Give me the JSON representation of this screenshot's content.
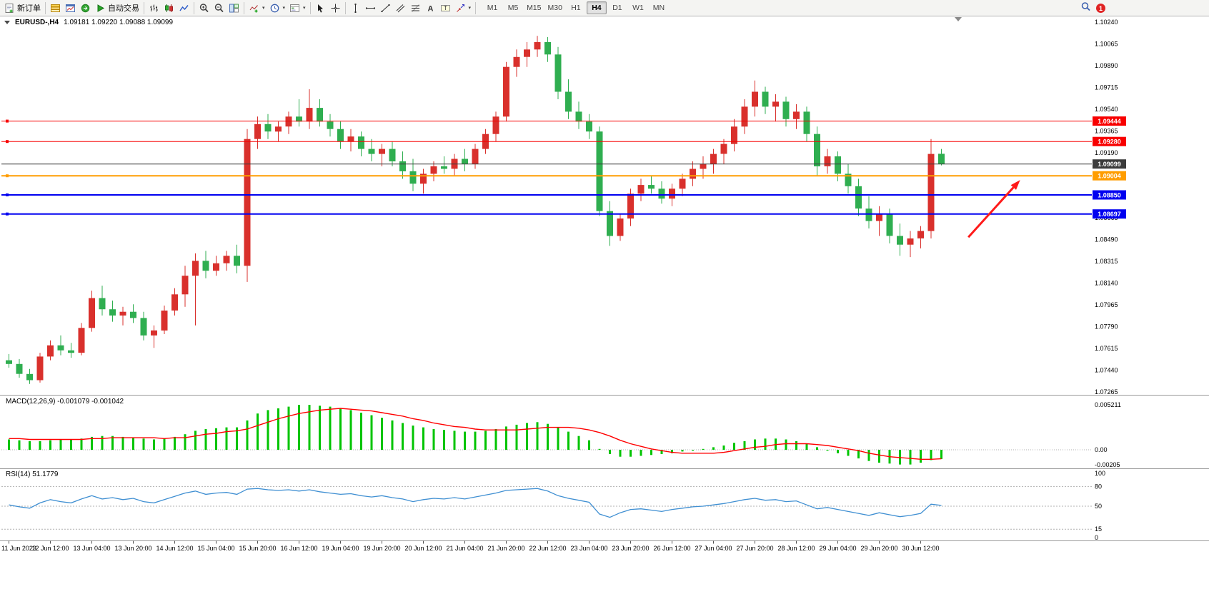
{
  "toolbar": {
    "new_order_label": "新订单",
    "autotrading_label": "自动交易",
    "timeframes": [
      "M1",
      "M5",
      "M15",
      "M30",
      "H1",
      "H4",
      "D1",
      "W1",
      "MN"
    ],
    "active_timeframe": "H4",
    "notification_count": "1",
    "dropdown_glyph": "▾"
  },
  "chart": {
    "symbol_period": "EURUSD-,H4",
    "ohlc": "1.09181 1.09220 1.09088 1.09099",
    "macd_label": "MACD(12,26,9) -0.001079 -0.001042",
    "rsi_label": "RSI(14) 51.1779"
  },
  "icons": {
    "new-order": "document-plus",
    "profiles": "layered-bars",
    "charts-window": "mini-chart-window",
    "navigator": "green-circle-arrow",
    "autotrading": "play-triangle",
    "bar-chart": "ohlc-bars",
    "candlestick-chart": "two-candles",
    "line-chart": "zigzag-line",
    "zoom-in": "magnifier-plus",
    "zoom-out": "magnifier-minus",
    "tile-windows": "tiled-panes",
    "indicators": "chart-line-plus",
    "periods": "clock",
    "templates": "chart-template",
    "cursor": "pointer-arrow",
    "crosshair": "crosshair",
    "vertical-line": "vertical-line",
    "horizontal-line": "horizontal-line",
    "trendline": "diagonal-line",
    "channel": "parallel-lines",
    "fibonacci": "fibo-levels",
    "text": "letter-A",
    "text-label": "label-box",
    "arrows": "arrow-shapes",
    "search": "magnifier",
    "shift-marker": "▼",
    "oneclick-arrow": "▼"
  },
  "chart_data": [
    {
      "panel": "price",
      "type": "candlestick",
      "symbol": "EURUSD-",
      "timeframe": "H4",
      "bars_per_label": 4,
      "x_labels": [
        "11 Jun 2023",
        "12 Jun 12:00",
        "13 Jun 04:00",
        "13 Jun 20:00",
        "14 Jun 12:00",
        "15 Jun 04:00",
        "15 Jun 20:00",
        "16 Jun 12:00",
        "19 Jun 04:00",
        "19 Jun 20:00",
        "20 Jun 12:00",
        "21 Jun 04:00",
        "21 Jun 20:00",
        "22 Jun 12:00",
        "23 Jun 04:00",
        "23 Jun 20:00",
        "26 Jun 12:00",
        "27 Jun 04:00",
        "27 Jun 20:00",
        "28 Jun 12:00",
        "29 Jun 04:00",
        "29 Jun 20:00",
        "30 Jun 12:00"
      ],
      "candles": [
        [
          1.0752,
          1.0757,
          1.0746,
          1.0749
        ],
        [
          1.0749,
          1.0753,
          1.0738,
          1.0741
        ],
        [
          1.0741,
          1.0745,
          1.0733,
          1.0736
        ],
        [
          1.0736,
          1.0758,
          1.0734,
          1.0755
        ],
        [
          1.0755,
          1.0768,
          1.0752,
          1.0764
        ],
        [
          1.0764,
          1.0772,
          1.0756,
          1.076
        ],
        [
          1.076,
          1.0766,
          1.0754,
          1.0758
        ],
        [
          1.0758,
          1.0782,
          1.0756,
          1.0778
        ],
        [
          1.0778,
          1.0808,
          1.0775,
          1.0802
        ],
        [
          1.0802,
          1.0812,
          1.0788,
          1.0793
        ],
        [
          1.0793,
          1.08,
          1.0783,
          1.0788
        ],
        [
          1.0788,
          1.0795,
          1.078,
          1.0791
        ],
        [
          1.0791,
          1.0797,
          1.0782,
          1.0786
        ],
        [
          1.0786,
          1.0791,
          1.0768,
          1.0772
        ],
        [
          1.0772,
          1.078,
          1.0762,
          1.0776
        ],
        [
          1.0776,
          1.0796,
          1.0773,
          1.0792
        ],
        [
          1.0792,
          1.081,
          1.0788,
          1.0805
        ],
        [
          1.0805,
          1.0828,
          1.0795,
          1.082
        ],
        [
          1.082,
          1.0838,
          1.078,
          1.0832
        ],
        [
          1.0832,
          1.084,
          1.0818,
          1.0824
        ],
        [
          1.0824,
          1.0836,
          1.082,
          1.083
        ],
        [
          1.083,
          1.084,
          1.0824,
          1.0836
        ],
        [
          1.0836,
          1.0845,
          1.0822,
          1.0828
        ],
        [
          1.0828,
          1.0938,
          1.0815,
          1.093
        ],
        [
          1.093,
          1.0948,
          1.0922,
          1.0942
        ],
        [
          1.0942,
          1.095,
          1.093,
          1.0936
        ],
        [
          1.0936,
          1.0944,
          1.0928,
          1.094
        ],
        [
          1.094,
          1.0952,
          1.0934,
          1.0948
        ],
        [
          1.0948,
          1.0962,
          1.094,
          1.0944
        ],
        [
          1.0944,
          1.097,
          1.0938,
          1.0955
        ],
        [
          1.0955,
          1.0962,
          1.094,
          1.0944
        ],
        [
          1.0944,
          1.095,
          1.0932,
          1.0938
        ],
        [
          1.0938,
          1.0944,
          1.0922,
          1.0928
        ],
        [
          1.0928,
          1.0938,
          1.092,
          1.0932
        ],
        [
          1.0932,
          1.0936,
          1.0916,
          1.0922
        ],
        [
          1.0922,
          1.093,
          1.0912,
          1.0918
        ],
        [
          1.0918,
          1.0926,
          1.0908,
          1.0922
        ],
        [
          1.0922,
          1.0928,
          1.0908,
          1.0912
        ],
        [
          1.0912,
          1.092,
          1.0898,
          1.0904
        ],
        [
          1.0904,
          1.0914,
          1.0888,
          1.0894
        ],
        [
          1.0894,
          1.0906,
          1.0886,
          1.0902
        ],
        [
          1.0902,
          1.0912,
          1.0896,
          1.0908
        ],
        [
          1.0908,
          1.0916,
          1.0902,
          1.0906
        ],
        [
          1.0906,
          1.0918,
          1.09,
          1.0914
        ],
        [
          1.0914,
          1.0922,
          1.0904,
          1.091
        ],
        [
          1.091,
          1.0926,
          1.0906,
          1.0922
        ],
        [
          1.0922,
          1.0938,
          1.0918,
          1.0934
        ],
        [
          1.0934,
          1.0952,
          1.0928,
          1.0948
        ],
        [
          1.0948,
          1.0992,
          1.0944,
          1.0988
        ],
        [
          1.0988,
          1.1002,
          1.098,
          1.0996
        ],
        [
          1.0996,
          1.1008,
          1.0988,
          1.1002
        ],
        [
          1.1002,
          1.1013,
          1.0996,
          1.1008
        ],
        [
          1.1008,
          1.1012,
          1.0992,
          1.0998
        ],
        [
          1.0998,
          1.1004,
          1.0962,
          1.0968
        ],
        [
          1.0968,
          1.0978,
          1.0946,
          1.0952
        ],
        [
          1.0952,
          1.096,
          1.0938,
          1.0944
        ],
        [
          1.0944,
          1.095,
          1.093,
          1.0936
        ],
        [
          1.0936,
          1.094,
          1.0868,
          1.0872
        ],
        [
          1.0872,
          1.088,
          1.0844,
          1.0852
        ],
        [
          1.0852,
          1.087,
          1.0848,
          1.0866
        ],
        [
          1.0866,
          1.089,
          1.086,
          1.0886
        ],
        [
          1.0886,
          1.0898,
          1.088,
          1.0893
        ],
        [
          1.0893,
          1.09,
          1.0886,
          1.089
        ],
        [
          1.089,
          1.0896,
          1.0878,
          1.0882
        ],
        [
          1.0882,
          1.0894,
          1.0876,
          1.089
        ],
        [
          1.089,
          1.0902,
          1.0884,
          1.0898
        ],
        [
          1.0898,
          1.0912,
          1.0892,
          1.0906
        ],
        [
          1.0906,
          1.0916,
          1.0898,
          1.091
        ],
        [
          1.091,
          1.0922,
          1.0902,
          1.0918
        ],
        [
          1.0918,
          1.093,
          1.091,
          1.0926
        ],
        [
          1.0926,
          1.0946,
          1.092,
          1.094
        ],
        [
          1.094,
          1.0962,
          1.0934,
          1.0956
        ],
        [
          1.0956,
          1.0977,
          1.0948,
          1.0968
        ],
        [
          1.0968,
          1.0972,
          1.095,
          1.0956
        ],
        [
          1.0956,
          1.0966,
          1.0944,
          1.096
        ],
        [
          1.096,
          1.0964,
          1.094,
          1.0946
        ],
        [
          1.0946,
          1.0958,
          1.0938,
          1.0952
        ],
        [
          1.0952,
          1.0956,
          1.0928,
          1.0934
        ],
        [
          1.0934,
          1.094,
          1.09,
          1.0908
        ],
        [
          1.0908,
          1.0922,
          1.0902,
          1.0916
        ],
        [
          1.0916,
          1.092,
          1.0896,
          1.0902
        ],
        [
          1.0902,
          1.091,
          1.0886,
          1.0892
        ],
        [
          1.0892,
          1.0898,
          1.0868,
          1.0874
        ],
        [
          1.0874,
          1.0884,
          1.0858,
          1.0864
        ],
        [
          1.0864,
          1.0876,
          1.0852,
          1.087
        ],
        [
          1.087,
          1.0874,
          1.0846,
          1.0852
        ],
        [
          1.0852,
          1.0862,
          1.0836,
          1.0845
        ],
        [
          1.0845,
          1.0856,
          1.0835,
          1.085
        ],
        [
          1.085,
          1.086,
          1.0842,
          1.0856
        ],
        [
          1.0856,
          1.093,
          1.085,
          1.0918
        ],
        [
          1.09181,
          1.0922,
          1.09088,
          1.09099
        ]
      ],
      "y_axis": {
        "min": 1.07265,
        "max": 1.1024,
        "step": 0.00175,
        "labels": [
          "1.10240",
          "1.10065",
          "1.09890",
          "1.09715",
          "1.09540",
          "1.09365",
          "1.09190",
          "1.09015",
          "1.08840",
          "1.08665",
          "1.08490",
          "1.08315",
          "1.08140",
          "1.07965",
          "1.07790",
          "1.07615",
          "1.07440",
          "1.07265"
        ]
      },
      "hlines": [
        {
          "price": 1.09444,
          "label": "1.09444",
          "color": "#f80000",
          "width": 1
        },
        {
          "price": 1.0928,
          "label": "1.09280",
          "color": "#f80000",
          "width": 1
        },
        {
          "price": 1.09099,
          "label": "1.09099",
          "color": "#3c3c3c",
          "width": 1,
          "current": true
        },
        {
          "price": 1.09004,
          "label": "1.09004",
          "color": "#ff9d00",
          "width": 2
        },
        {
          "price": 1.0885,
          "label": "1.08850",
          "color": "#0000f0",
          "width": 2
        },
        {
          "price": 1.08697,
          "label": "1.08697",
          "color": "#0000f0",
          "width": 2
        }
      ],
      "arrow": {
        "bar_from": 92.6,
        "price_from": 1.0851,
        "bar_to": 97.6,
        "price_to": 1.0897,
        "color": "#ff1a1a"
      },
      "colors": {
        "bull": "#d9302c",
        "bear": "#2fae50"
      }
    },
    {
      "panel": "macd",
      "type": "bar",
      "label": "MACD(12,26,9) -0.001079 -0.001042",
      "histogram": [
        0.0012,
        0.0011,
        0.001,
        0.001,
        0.0011,
        0.0012,
        0.0012,
        0.0013,
        0.0015,
        0.0016,
        0.0016,
        0.0015,
        0.0014,
        0.0013,
        0.0012,
        0.0013,
        0.0015,
        0.0018,
        0.0022,
        0.0024,
        0.0025,
        0.0026,
        0.0026,
        0.0034,
        0.0042,
        0.0046,
        0.0048,
        0.005,
        0.0052,
        0.0052,
        0.0051,
        0.005,
        0.0048,
        0.0046,
        0.0043,
        0.004,
        0.0037,
        0.0034,
        0.0031,
        0.0028,
        0.0026,
        0.0024,
        0.0023,
        0.0022,
        0.0021,
        0.0021,
        0.0022,
        0.0024,
        0.0027,
        0.0029,
        0.0031,
        0.0032,
        0.003,
        0.0026,
        0.0021,
        0.0016,
        0.0011,
        0.0001,
        -0.0005,
        -0.0008,
        -0.0008,
        -0.0007,
        -0.0006,
        -0.0005,
        -0.0004,
        -0.0002,
        -0.0001,
        0.0001,
        0.0003,
        0.0005,
        0.0008,
        0.001,
        0.0012,
        0.0013,
        0.0013,
        0.0012,
        0.001,
        0.0007,
        0.0003,
        -0.0001,
        -0.0004,
        -0.0007,
        -0.001,
        -0.0013,
        -0.0015,
        -0.0016,
        -0.0017,
        -0.0017,
        -0.0015,
        -0.0012,
        -0.001079
      ],
      "signal": [
        0.0013,
        0.0013,
        0.0012,
        0.0012,
        0.0012,
        0.0012,
        0.0012,
        0.0012,
        0.0013,
        0.0013,
        0.0014,
        0.0014,
        0.0014,
        0.0014,
        0.0014,
        0.0013,
        0.0014,
        0.0014,
        0.0016,
        0.0018,
        0.0019,
        0.0021,
        0.0022,
        0.0024,
        0.0028,
        0.0032,
        0.0036,
        0.0039,
        0.0042,
        0.0044,
        0.0046,
        0.0047,
        0.0048,
        0.0047,
        0.0046,
        0.0045,
        0.0043,
        0.0041,
        0.0039,
        0.0036,
        0.0034,
        0.0031,
        0.0029,
        0.0027,
        0.0026,
        0.0024,
        0.0023,
        0.0023,
        0.0023,
        0.0023,
        0.0024,
        0.0025,
        0.0026,
        0.0026,
        0.0026,
        0.0025,
        0.0023,
        0.002,
        0.0016,
        0.0011,
        0.0007,
        0.0004,
        0.0001,
        -0.0001,
        -0.0003,
        -0.0004,
        -0.0004,
        -0.0004,
        -0.0004,
        -0.0003,
        -0.0001,
        0.0001,
        0.0003,
        0.0004,
        0.0006,
        0.0007,
        0.0007,
        0.0007,
        0.0006,
        0.0005,
        0.0003,
        0.0001,
        -0.0001,
        -0.0004,
        -0.0006,
        -0.0008,
        -0.0009,
        -0.001,
        -0.0011,
        -0.0011,
        -0.001042
      ],
      "y_axis": {
        "labels": [
          {
            "text": "0.005211",
            "value": 0.005211
          },
          {
            "text": "0.00",
            "value": 0
          },
          {
            "text": "-0.00205",
            "value": -0.00205
          }
        ]
      },
      "colors": {
        "histogram": "#00c400",
        "signal": "#ff0000"
      }
    },
    {
      "panel": "rsi",
      "type": "line",
      "label": "RSI(14) 51.1779",
      "value": 51.1779,
      "values": [
        52,
        49,
        47,
        55,
        60,
        57,
        55,
        61,
        66,
        61,
        63,
        60,
        62,
        57,
        55,
        60,
        65,
        70,
        73,
        68,
        70,
        71,
        68,
        76,
        77,
        75,
        74,
        75,
        73,
        75,
        72,
        70,
        68,
        69,
        66,
        64,
        66,
        63,
        61,
        57,
        60,
        62,
        61,
        63,
        61,
        64,
        67,
        70,
        74,
        75,
        76,
        77,
        73,
        66,
        62,
        59,
        56,
        38,
        33,
        40,
        45,
        46,
        44,
        42,
        45,
        47,
        49,
        50,
        52,
        54,
        57,
        60,
        62,
        59,
        60,
        57,
        58,
        52,
        46,
        48,
        45,
        42,
        39,
        36,
        40,
        37,
        34,
        36,
        39,
        53,
        51.18
      ],
      "levels": [
        80,
        50,
        15
      ],
      "y_axis": {
        "min": 0,
        "max": 100,
        "labels": [
          {
            "text": "100",
            "value": 100
          },
          {
            "text": "80",
            "value": 80
          },
          {
            "text": "50",
            "value": 50
          },
          {
            "text": "15",
            "value": 15
          },
          {
            "text": "0",
            "value": 0
          }
        ]
      },
      "colors": {
        "line": "#3f8fd2"
      }
    }
  ]
}
